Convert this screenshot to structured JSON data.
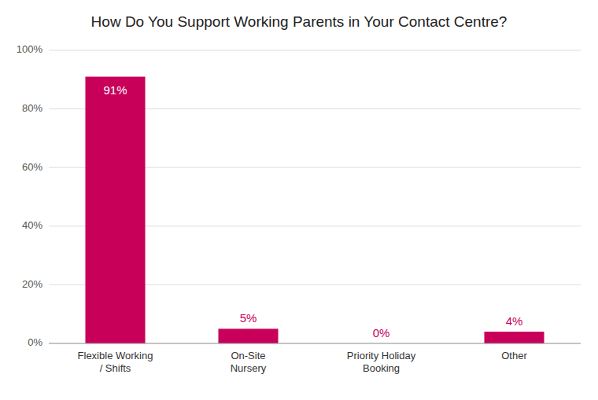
{
  "chart_data": {
    "type": "bar",
    "title": "How Do You Support Working Parents in Your Contact Centre?",
    "categories": [
      "Flexible Working\n/ Shifts",
      "On-Site\nNursery",
      "Priority Holiday\nBooking",
      "Other"
    ],
    "values": [
      91,
      5,
      0,
      4
    ],
    "value_labels": [
      "91%",
      "5%",
      "0%",
      "4%"
    ],
    "data_labels": true,
    "color": "#c8005a",
    "ylim": [
      0,
      100
    ],
    "yticks": [
      {
        "value": 0,
        "label": "0%"
      },
      {
        "value": 20,
        "label": "20%"
      },
      {
        "value": 40,
        "label": "40%"
      },
      {
        "value": 60,
        "label": "60%"
      },
      {
        "value": 80,
        "label": "80%"
      },
      {
        "value": 100,
        "label": "100%"
      }
    ],
    "grid": true
  }
}
